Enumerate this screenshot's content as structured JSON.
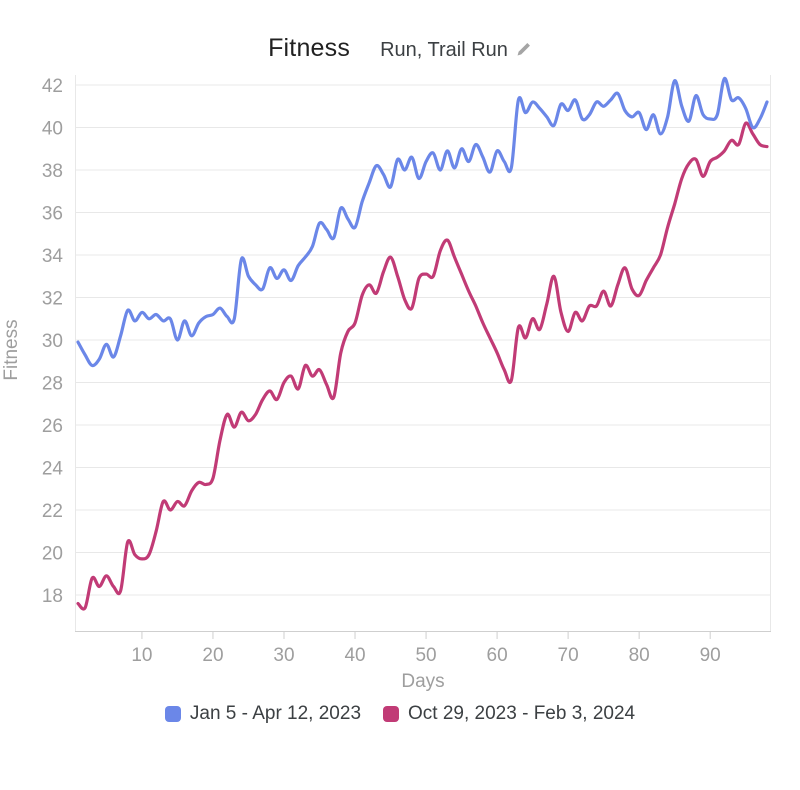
{
  "header": {
    "title": "Fitness",
    "subtitle": "Run, Trail Run"
  },
  "colors": {
    "background": "#ffffff",
    "blue_series": "#6b87e8",
    "pink_series": "#c13b76",
    "gridline": "#e8e8e8",
    "axis_line": "#cfcfcf",
    "tick_text": "#9e9e9e",
    "axis_title_text": "#9e9e9e",
    "title_text": "#212121",
    "subtitle_text": "#3c4043",
    "legend_text": "#3c4043",
    "pencil_icon": "#a5a5a5"
  },
  "chart_data": {
    "type": "line",
    "title": "Fitness",
    "xlabel": "Days",
    "ylabel": "Fitness",
    "grid": true,
    "legend_position": "bottom",
    "xlim": [
      1,
      98
    ],
    "ylim": [
      16.3,
      42.5
    ],
    "x_ticks": [
      10,
      20,
      30,
      40,
      50,
      60,
      70,
      80,
      90
    ],
    "y_ticks": [
      18,
      20,
      22,
      24,
      26,
      28,
      30,
      32,
      34,
      36,
      38,
      40,
      42
    ],
    "x_start": 1,
    "series": [
      {
        "name": "Jan 5 - Apr 12, 2023",
        "color": "#6b87e8",
        "values": [
          29.9,
          29.3,
          28.8,
          29.1,
          29.8,
          29.2,
          30.2,
          31.4,
          30.9,
          31.3,
          31.0,
          31.2,
          30.9,
          31.0,
          30.0,
          30.9,
          30.2,
          30.8,
          31.1,
          31.2,
          31.5,
          31.1,
          31.0,
          33.8,
          33.0,
          32.6,
          32.4,
          33.4,
          32.9,
          33.3,
          32.8,
          33.5,
          33.9,
          34.4,
          35.5,
          35.2,
          34.8,
          36.2,
          35.7,
          35.3,
          36.5,
          37.4,
          38.2,
          37.8,
          37.2,
          38.5,
          38.0,
          38.6,
          37.6,
          38.4,
          38.8,
          38.0,
          38.9,
          38.1,
          39.0,
          38.4,
          39.2,
          38.6,
          37.9,
          38.9,
          38.4,
          38.1,
          41.3,
          40.7,
          41.2,
          40.9,
          40.5,
          40.1,
          41.1,
          40.8,
          41.3,
          40.4,
          40.6,
          41.2,
          41.0,
          41.3,
          41.6,
          40.8,
          40.5,
          40.7,
          39.9,
          40.6,
          39.7,
          40.5,
          42.2,
          41.0,
          40.3,
          41.5,
          40.6,
          40.4,
          40.6,
          42.3,
          41.3,
          41.4,
          40.9,
          40.0,
          40.4,
          41.2
        ]
      },
      {
        "name": "Oct 29, 2023 - Feb 3, 2024",
        "color": "#c13b76",
        "values": [
          17.6,
          17.4,
          18.8,
          18.4,
          18.9,
          18.4,
          18.2,
          20.5,
          19.9,
          19.7,
          19.9,
          21.0,
          22.4,
          22.0,
          22.4,
          22.2,
          22.9,
          23.3,
          23.2,
          23.5,
          25.3,
          26.5,
          25.9,
          26.6,
          26.2,
          26.5,
          27.2,
          27.6,
          27.2,
          28.0,
          28.3,
          27.7,
          28.8,
          28.3,
          28.6,
          27.9,
          27.3,
          29.4,
          30.4,
          30.8,
          32.1,
          32.6,
          32.2,
          33.2,
          33.9,
          33.0,
          31.9,
          31.5,
          32.9,
          33.1,
          33.0,
          34.2,
          34.7,
          33.9,
          33.1,
          32.3,
          31.6,
          30.8,
          30.1,
          29.4,
          28.6,
          28.1,
          30.6,
          30.1,
          31.0,
          30.5,
          31.7,
          33.0,
          31.3,
          30.4,
          31.3,
          30.9,
          31.6,
          31.6,
          32.3,
          31.6,
          32.6,
          33.4,
          32.4,
          32.1,
          32.8,
          33.4,
          34.0,
          35.3,
          36.4,
          37.6,
          38.3,
          38.5,
          37.7,
          38.4,
          38.6,
          38.9,
          39.4,
          39.2,
          40.2,
          39.7,
          39.2,
          39.1
        ]
      }
    ]
  }
}
